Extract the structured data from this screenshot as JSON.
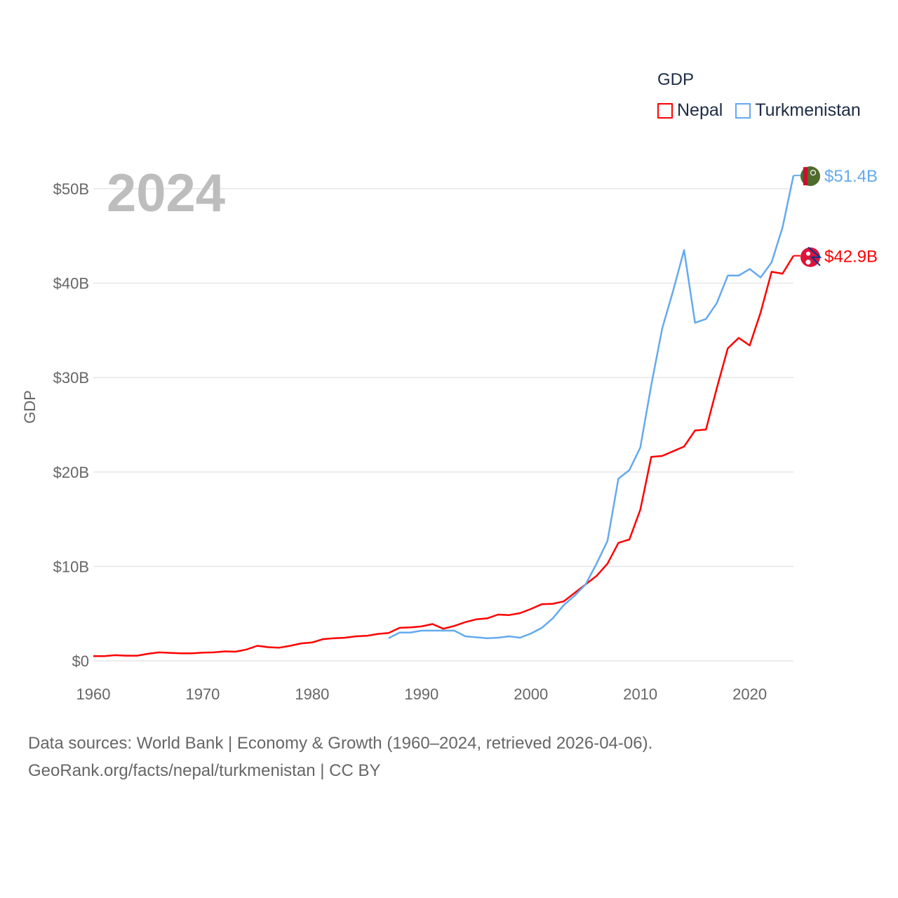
{
  "chart_data": {
    "type": "line",
    "title": "2024",
    "xlabel": "",
    "ylabel": "GDP",
    "xlim": [
      1960,
      2024
    ],
    "ylim": [
      0,
      55
    ],
    "grid": true,
    "x_ticks": [
      1960,
      1970,
      1980,
      1990,
      2000,
      2010,
      2020
    ],
    "x_tick_labels": [
      "1960",
      "1970",
      "1980",
      "1990",
      "2000",
      "2010",
      "2020"
    ],
    "y_ticks": [
      0,
      10,
      20,
      30,
      40,
      50
    ],
    "y_tick_labels": [
      "$0",
      "$10B",
      "$20B",
      "$30B",
      "$40B",
      "$50B"
    ],
    "legend_title": "GDP",
    "legend_placement": "top-right",
    "series": [
      {
        "name": "Nepal",
        "color": "#ff0000",
        "end_label": "$42.9B",
        "start_year": 1960,
        "values": [
          0.5,
          0.5,
          0.6,
          0.55,
          0.55,
          0.75,
          0.9,
          0.85,
          0.8,
          0.8,
          0.87,
          0.9,
          1.0,
          0.97,
          1.2,
          1.6,
          1.45,
          1.4,
          1.6,
          1.85,
          1.95,
          2.3,
          2.4,
          2.45,
          2.6,
          2.65,
          2.85,
          2.95,
          3.5,
          3.55,
          3.65,
          3.9,
          3.4,
          3.7,
          4.1,
          4.4,
          4.5,
          4.9,
          4.85,
          5.05,
          5.5,
          6.0,
          6.05,
          6.3,
          7.2,
          8.1,
          9.0,
          10.3,
          12.5,
          12.85,
          16.0,
          21.6,
          21.7,
          22.2,
          22.7,
          24.4,
          24.5,
          28.9,
          33.1,
          34.2,
          33.4,
          36.9,
          41.2,
          41.0,
          42.9
        ]
      },
      {
        "name": "Turkmenistan",
        "color": "#64aaee",
        "end_label": "$51.4B",
        "start_year": 1987,
        "values": [
          2.4,
          3.0,
          3.0,
          3.2,
          3.2,
          3.2,
          3.2,
          2.6,
          2.5,
          2.4,
          2.45,
          2.6,
          2.45,
          2.9,
          3.5,
          4.5,
          5.9,
          6.9,
          8.1,
          10.3,
          12.7,
          19.3,
          20.2,
          22.6,
          29.2,
          35.2,
          39.2,
          43.5,
          35.8,
          36.2,
          37.9,
          40.8,
          40.8,
          41.5,
          40.6,
          42.2,
          45.9,
          51.4
        ]
      }
    ]
  },
  "footer": {
    "line1": "Data sources: World Bank | Economy & Growth (1960–2024, retrieved 2026-04-06).",
    "line2": "GeoRank.org/facts/nepal/turkmenistan | CC BY"
  }
}
